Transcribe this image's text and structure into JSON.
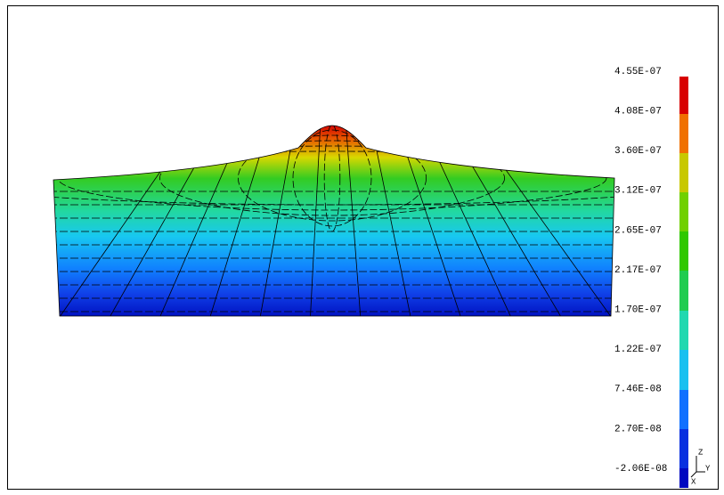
{
  "colorbar": {
    "labels": [
      "4.55E-07",
      "4.08E-07",
      "3.60E-07",
      "3.12E-07",
      "2.65E-07",
      "2.17E-07",
      "1.70E-07",
      "1.22E-07",
      "7.46E-08",
      "2.70E-08",
      "-2.06E-08"
    ]
  },
  "triad": {
    "z": "Z",
    "x": "X",
    "y": "Y"
  }
}
